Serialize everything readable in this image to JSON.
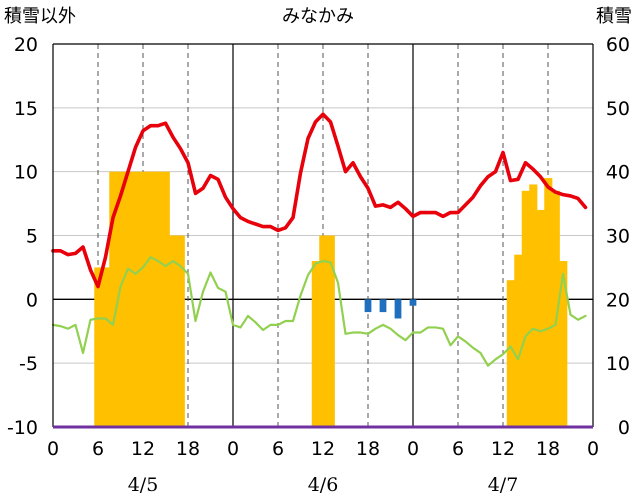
{
  "chart_data": {
    "type": "bar",
    "title": "みなかみ",
    "left_axis_label": "積雪以外",
    "right_axis_label": "積雪",
    "left_ylim": [
      -10,
      20
    ],
    "left_yticks": [
      "20",
      "15",
      "10",
      "5",
      "0",
      "-5",
      "-10"
    ],
    "right_ylim": [
      0,
      60
    ],
    "right_yticks": [
      "60",
      "50",
      "40",
      "30",
      "20",
      "10",
      "0"
    ],
    "x_tick_labels": [
      "0",
      "6",
      "12",
      "18",
      "0",
      "6",
      "12",
      "18",
      "0",
      "6",
      "12",
      "18",
      "0"
    ],
    "date_labels": [
      "4/5",
      "4/6",
      "4/7"
    ],
    "grid": "dashed vertical lines at hours 6, 12, 18; solid lines at day boundaries and at 0 on the left axis",
    "hours": [
      0,
      1,
      2,
      3,
      4,
      5,
      6,
      7,
      8,
      9,
      10,
      11,
      12,
      13,
      14,
      15,
      16,
      17,
      18,
      19,
      20,
      21,
      22,
      23,
      24,
      25,
      26,
      27,
      28,
      29,
      30,
      31,
      32,
      33,
      34,
      35,
      36,
      37,
      38,
      39,
      40,
      41,
      42,
      43,
      44,
      45,
      46,
      47,
      48,
      49,
      50,
      51,
      52,
      53,
      54,
      55,
      56,
      57,
      58,
      59,
      60,
      61,
      62,
      63,
      64,
      65,
      66,
      67,
      68,
      69,
      70,
      71
    ],
    "series": [
      {
        "color": "#E8000B",
        "axis": "left",
        "style": "line",
        "values": [
          3.8,
          3.8,
          3.5,
          3.6,
          4.1,
          2.3,
          1.0,
          3.3,
          6.4,
          8.1,
          10.0,
          11.9,
          13.2,
          13.6,
          13.6,
          13.8,
          12.7,
          11.8,
          10.7,
          8.3,
          8.7,
          9.7,
          9.4,
          8.0,
          7.1,
          6.4,
          6.1,
          5.9,
          5.7,
          5.7,
          5.4,
          5.6,
          6.4,
          9.9,
          12.6,
          13.9,
          14.5,
          13.9,
          12.0,
          10.0,
          10.7,
          9.6,
          8.7,
          7.3,
          7.4,
          7.2,
          7.6,
          7.1,
          6.5,
          6.8,
          6.8,
          6.8,
          6.5,
          6.8,
          6.8,
          7.4,
          8.0,
          8.9,
          9.6,
          10.0,
          11.5,
          9.3,
          9.4,
          10.7,
          10.2,
          9.6,
          8.8,
          8.4,
          8.2,
          8.1,
          7.9,
          7.2
        ]
      },
      {
        "color": "#92D050",
        "axis": "left",
        "style": "line",
        "values": [
          -2.0,
          -2.1,
          -2.3,
          -2.0,
          -4.2,
          -1.6,
          -1.5,
          -1.5,
          -2.0,
          1.0,
          2.4,
          2.0,
          2.5,
          3.3,
          3.0,
          2.6,
          3.0,
          2.6,
          2.0,
          -1.7,
          0.6,
          2.1,
          0.9,
          0.6,
          -2.0,
          -2.2,
          -1.3,
          -1.8,
          -2.4,
          -2.0,
          -2.0,
          -1.7,
          -1.7,
          0.3,
          1.9,
          2.8,
          3.0,
          2.9,
          1.3,
          -2.7,
          -2.6,
          -2.6,
          -2.7,
          -2.3,
          -2.0,
          -2.3,
          -2.8,
          -3.2,
          -2.6,
          -2.6,
          -2.2,
          -2.2,
          -2.3,
          -3.6,
          -2.9,
          -3.3,
          -3.8,
          -4.2,
          -5.2,
          -4.7,
          -4.3,
          -3.7,
          -4.7,
          -2.9,
          -2.3,
          -2.5,
          -2.3,
          -2.0,
          2.0,
          -1.2,
          -1.6,
          -1.3
        ]
      }
    ],
    "bars": [
      {
        "color": "#FFC000",
        "axis": "right",
        "hours": [
          6,
          7,
          8,
          9,
          10,
          11,
          12,
          13,
          14,
          15,
          16,
          17,
          35,
          36,
          37,
          61,
          62,
          63,
          64,
          65,
          66,
          67,
          68
        ],
        "values": [
          25,
          25,
          40,
          40,
          40,
          40,
          40,
          40,
          40,
          40,
          30,
          30,
          26,
          30,
          30,
          23,
          27,
          37,
          38,
          34,
          39,
          37,
          26
        ]
      },
      {
        "color": "#1F6FBF",
        "axis": "left",
        "hours": [
          42,
          44,
          46,
          48
        ],
        "values": [
          -1.0,
          -1.0,
          -1.5,
          -0.5
        ]
      }
    ],
    "baseline_color": "#7030A0"
  }
}
